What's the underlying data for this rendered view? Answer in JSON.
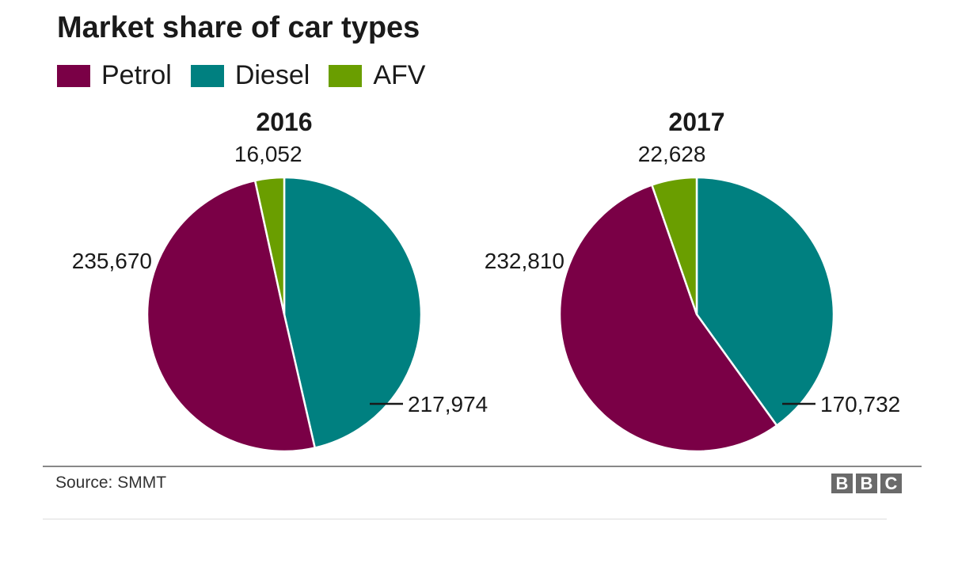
{
  "title": "Market share of car types",
  "colors": {
    "Petrol": "#7a0046",
    "Diesel": "#008080",
    "AFV": "#6a9e00"
  },
  "legend": [
    {
      "label": "Petrol"
    },
    {
      "label": "Diesel"
    },
    {
      "label": "AFV"
    }
  ],
  "chart_data": [
    {
      "type": "pie",
      "title": "2016",
      "slices": [
        {
          "name": "Diesel",
          "value": 217974,
          "label": "217,974"
        },
        {
          "name": "Petrol",
          "value": 235670,
          "label": "235,670"
        },
        {
          "name": "AFV",
          "value": 16052,
          "label": "16,052"
        }
      ]
    },
    {
      "type": "pie",
      "title": "2017",
      "slices": [
        {
          "name": "Diesel",
          "value": 170732,
          "label": "170,732"
        },
        {
          "name": "Petrol",
          "value": 232810,
          "label": "232,810"
        },
        {
          "name": "AFV",
          "value": 22628,
          "label": "22,628"
        }
      ]
    }
  ],
  "source": "Source: SMMT",
  "logo": [
    "B",
    "B",
    "C"
  ]
}
